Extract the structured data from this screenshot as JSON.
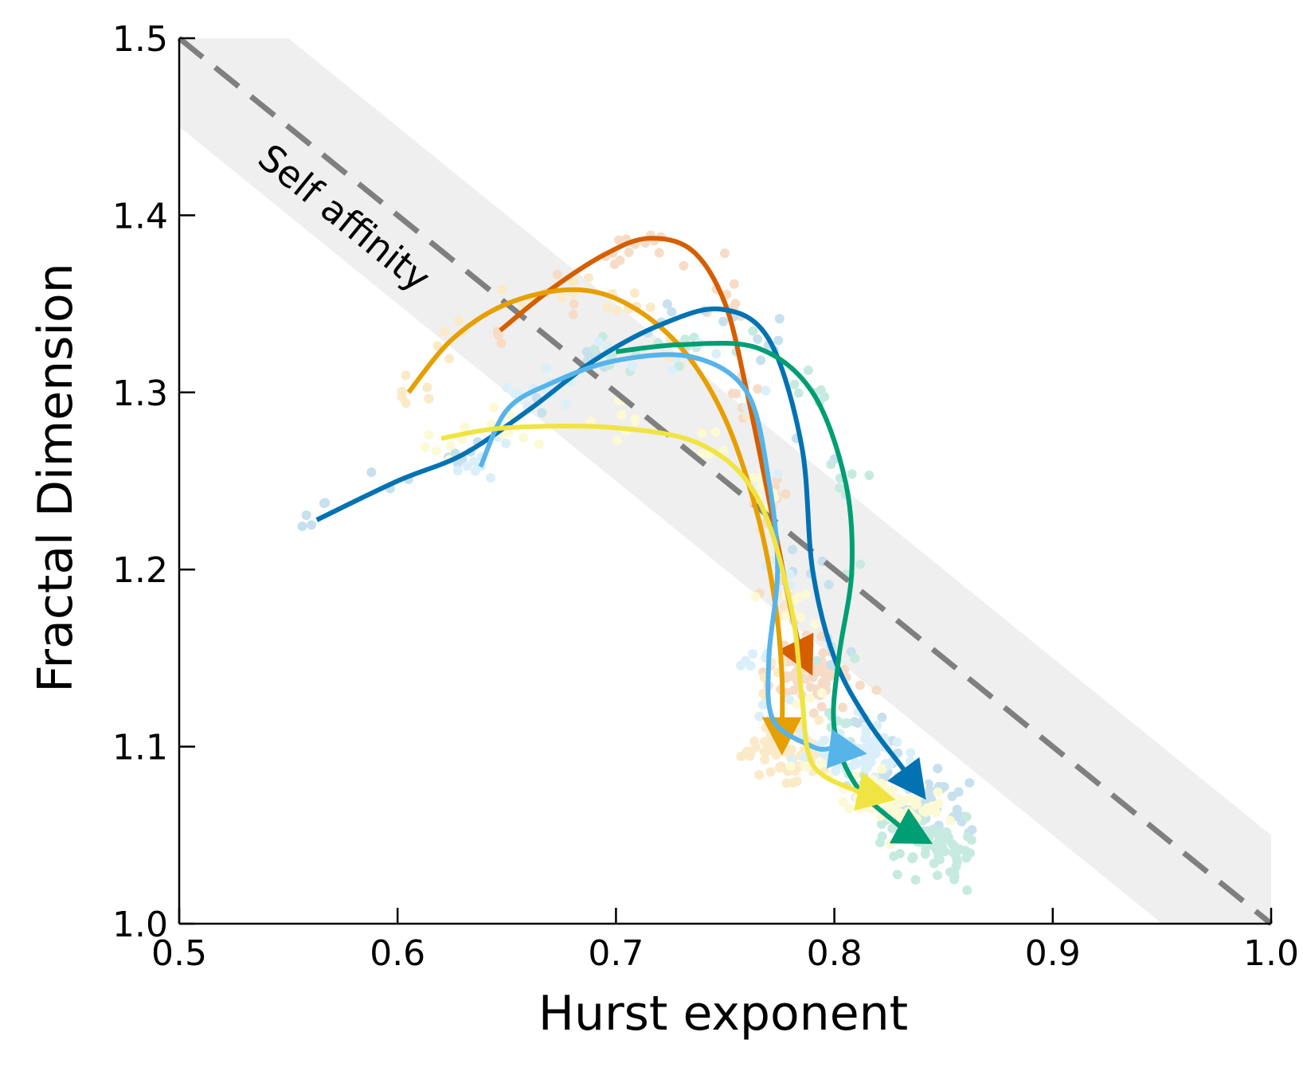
{
  "chart_data": {
    "type": "line",
    "xlabel": "Hurst exponent",
    "ylabel": "Fractal Dimension",
    "xlim": [
      0.5,
      1.0
    ],
    "ylim": [
      1.0,
      1.5
    ],
    "xticks": [
      "0.5",
      "0.6",
      "0.7",
      "0.8",
      "0.9",
      "1.0"
    ],
    "yticks": [
      "1.0",
      "1.1",
      "1.2",
      "1.3",
      "1.4",
      "1.5"
    ],
    "grid": false,
    "annotations": [
      {
        "text": "Self affinity",
        "x": 0.535,
        "y": 1.43
      }
    ],
    "reference_line": {
      "style": "dashed",
      "color": "#7f7f7f",
      "points": [
        [
          0.5,
          1.5
        ],
        [
          1.0,
          1.0
        ]
      ]
    },
    "band": {
      "color": "#efefef",
      "points": [
        [
          0.5,
          1.5
        ],
        [
          0.55,
          1.5
        ],
        [
          1.0,
          1.05
        ],
        [
          1.0,
          1.0
        ],
        [
          0.95,
          1.0
        ],
        [
          0.5,
          1.45
        ]
      ]
    },
    "series": [
      {
        "color": "#d55e00",
        "points": [
          [
            0.647,
            1.335
          ],
          [
            0.67,
            1.358
          ],
          [
            0.695,
            1.378
          ],
          [
            0.715,
            1.387
          ],
          [
            0.735,
            1.38
          ],
          [
            0.75,
            1.35
          ],
          [
            0.76,
            1.3
          ],
          [
            0.77,
            1.24
          ],
          [
            0.778,
            1.19
          ],
          [
            0.784,
            1.155
          ],
          [
            0.79,
            1.14
          ]
        ]
      },
      {
        "color": "#e69f00",
        "points": [
          [
            0.605,
            1.3
          ],
          [
            0.625,
            1.33
          ],
          [
            0.65,
            1.35
          ],
          [
            0.68,
            1.358
          ],
          [
            0.705,
            1.35
          ],
          [
            0.73,
            1.325
          ],
          [
            0.75,
            1.285
          ],
          [
            0.765,
            1.23
          ],
          [
            0.773,
            1.18
          ],
          [
            0.776,
            1.14
          ],
          [
            0.776,
            1.105
          ],
          [
            0.776,
            1.095
          ]
        ]
      },
      {
        "color": "#0072b2",
        "points": [
          [
            0.563,
            1.228
          ],
          [
            0.6,
            1.25
          ],
          [
            0.63,
            1.265
          ],
          [
            0.66,
            1.29
          ],
          [
            0.69,
            1.318
          ],
          [
            0.72,
            1.338
          ],
          [
            0.748,
            1.347
          ],
          [
            0.77,
            1.33
          ],
          [
            0.785,
            1.27
          ],
          [
            0.79,
            1.2
          ],
          [
            0.8,
            1.15
          ],
          [
            0.815,
            1.115
          ],
          [
            0.83,
            1.09
          ],
          [
            0.842,
            1.07
          ]
        ]
      },
      {
        "color": "#009e73",
        "points": [
          [
            0.7,
            1.323
          ],
          [
            0.73,
            1.327
          ],
          [
            0.765,
            1.325
          ],
          [
            0.79,
            1.3
          ],
          [
            0.805,
            1.25
          ],
          [
            0.808,
            1.2
          ],
          [
            0.802,
            1.15
          ],
          [
            0.8,
            1.11
          ],
          [
            0.81,
            1.078
          ],
          [
            0.83,
            1.055
          ],
          [
            0.845,
            1.045
          ]
        ]
      },
      {
        "color": "#56b4e9",
        "points": [
          [
            0.638,
            1.258
          ],
          [
            0.65,
            1.29
          ],
          [
            0.67,
            1.305
          ],
          [
            0.7,
            1.318
          ],
          [
            0.735,
            1.32
          ],
          [
            0.76,
            1.3
          ],
          [
            0.77,
            1.25
          ],
          [
            0.774,
            1.2
          ],
          [
            0.77,
            1.15
          ],
          [
            0.772,
            1.115
          ],
          [
            0.79,
            1.1
          ],
          [
            0.815,
            1.096
          ]
        ]
      },
      {
        "color": "#f0e442",
        "points": [
          [
            0.62,
            1.274
          ],
          [
            0.65,
            1.28
          ],
          [
            0.7,
            1.28
          ],
          [
            0.74,
            1.27
          ],
          [
            0.765,
            1.24
          ],
          [
            0.78,
            1.18
          ],
          [
            0.785,
            1.13
          ],
          [
            0.79,
            1.09
          ],
          [
            0.81,
            1.075
          ],
          [
            0.828,
            1.07
          ]
        ]
      }
    ]
  }
}
